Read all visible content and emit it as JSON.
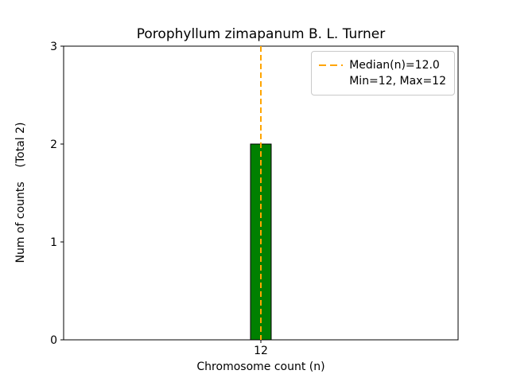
{
  "chart_data": {
    "type": "bar",
    "title": "Porophyllum zimapanum B. L. Turner",
    "xlabel": "Chromosome count (n)",
    "ylabel": "Num of counts    (Total 2)",
    "categories": [
      "12"
    ],
    "values": [
      2
    ],
    "total_counts": 2,
    "ylim": [
      0,
      3
    ],
    "yticks": [
      0,
      1,
      2,
      3
    ],
    "median": 12.0,
    "min": 12,
    "max": 12,
    "legend": [
      "Median(n)=12.0",
      "Min=12, Max=12"
    ],
    "legend_position": "upper right",
    "grid": false,
    "bar_color": "#008000",
    "bar_edge_color": "#000000",
    "median_line_color": "#FFA500",
    "axes_color": "#000000",
    "background_color": "#ffffff"
  }
}
